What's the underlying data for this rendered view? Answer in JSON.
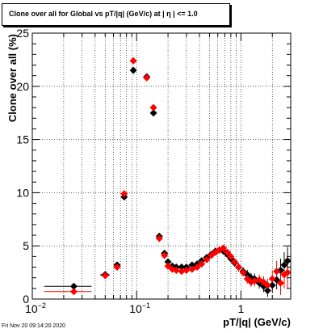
{
  "header": {
    "title": "Clone  over all for Global vs pT/|q| (GeV/c) at |  η | <= 1.0"
  },
  "footer": {
    "timestamp": "Fri Nov 20 09:14:20 2020"
  },
  "colors": {
    "series_black": "#000000",
    "series_red": "#ff0000",
    "frame": "#000000",
    "grid": "#000000",
    "background": "#ffffff"
  },
  "chart_data": {
    "type": "scatter",
    "xlabel": "pT/|q| (GeV/c)",
    "ylabel": "Clone  over all (%)",
    "x_scale": "log",
    "xlim": [
      0.01,
      3.0
    ],
    "ylim": [
      0,
      25
    ],
    "grid": true,
    "x_ticks": [
      {
        "value": 0.01,
        "base": "10",
        "exp": "−2"
      },
      {
        "value": 0.1,
        "base": "10",
        "exp": "−1"
      },
      {
        "value": 1,
        "base": "1",
        "exp": ""
      }
    ],
    "y_ticks": [
      0,
      5,
      10,
      15,
      20,
      25
    ],
    "series": [
      {
        "color": "#000000",
        "points": [
          {
            "x": 0.025,
            "y": 1.2,
            "xerr": 0.012,
            "yerr": 0.3
          },
          {
            "x": 0.05,
            "y": 2.3,
            "xerr": 0.005,
            "yerr": 0.25
          },
          {
            "x": 0.065,
            "y": 3.2,
            "xerr": 0.004,
            "yerr": 0.25
          },
          {
            "x": 0.076,
            "y": 9.6,
            "xerr": 0.003,
            "yerr": 0.3
          },
          {
            "x": 0.093,
            "y": 21.5,
            "xerr": 0.004,
            "yerr": 0.3
          },
          {
            "x": 0.125,
            "y": 20.9,
            "xerr": 0.005,
            "yerr": 0.3
          },
          {
            "x": 0.145,
            "y": 17.5,
            "xerr": 0.005,
            "yerr": 0.3
          },
          {
            "x": 0.165,
            "y": 5.9,
            "xerr": 0.005,
            "yerr": 0.3
          },
          {
            "x": 0.185,
            "y": 4.3,
            "xerr": 0.005,
            "yerr": 0.3
          },
          {
            "x": 0.2,
            "y": 3.5,
            "xerr": 0.005,
            "yerr": 0.25
          },
          {
            "x": 0.22,
            "y": 3.1,
            "xerr": 0.005,
            "yerr": 0.25
          },
          {
            "x": 0.24,
            "y": 3.0,
            "xerr": 0.005,
            "yerr": 0.25
          },
          {
            "x": 0.27,
            "y": 3.0,
            "xerr": 0.006,
            "yerr": 0.25
          },
          {
            "x": 0.3,
            "y": 3.0,
            "xerr": 0.006,
            "yerr": 0.25
          },
          {
            "x": 0.34,
            "y": 3.2,
            "xerr": 0.007,
            "yerr": 0.25
          },
          {
            "x": 0.38,
            "y": 3.3,
            "xerr": 0.008,
            "yerr": 0.25
          },
          {
            "x": 0.42,
            "y": 3.6,
            "xerr": 0.008,
            "yerr": 0.25
          },
          {
            "x": 0.47,
            "y": 3.9,
            "xerr": 0.009,
            "yerr": 0.25
          },
          {
            "x": 0.52,
            "y": 4.2,
            "xerr": 0.01,
            "yerr": 0.25
          },
          {
            "x": 0.57,
            "y": 4.5,
            "xerr": 0.011,
            "yerr": 0.3
          },
          {
            "x": 0.62,
            "y": 4.6,
            "xerr": 0.012,
            "yerr": 0.3
          },
          {
            "x": 0.68,
            "y": 4.5,
            "xerr": 0.013,
            "yerr": 0.3
          },
          {
            "x": 0.74,
            "y": 4.2,
            "xerr": 0.014,
            "yerr": 0.3
          },
          {
            "x": 0.8,
            "y": 3.8,
            "xerr": 0.015,
            "yerr": 0.35
          },
          {
            "x": 0.87,
            "y": 3.4,
            "xerr": 0.017,
            "yerr": 0.35
          },
          {
            "x": 0.95,
            "y": 3.0,
            "xerr": 0.018,
            "yerr": 0.4
          },
          {
            "x": 1.05,
            "y": 2.6,
            "xerr": 0.02,
            "yerr": 0.4
          },
          {
            "x": 1.15,
            "y": 2.3,
            "xerr": 0.022,
            "yerr": 0.45
          },
          {
            "x": 1.25,
            "y": 2.0,
            "xerr": 0.024,
            "yerr": 0.45
          },
          {
            "x": 1.35,
            "y": 1.9,
            "xerr": 0.026,
            "yerr": 0.5
          },
          {
            "x": 1.5,
            "y": 1.5,
            "xerr": 0.03,
            "yerr": 0.5
          },
          {
            "x": 1.65,
            "y": 1.2,
            "xerr": 0.03,
            "yerr": 0.55
          },
          {
            "x": 1.8,
            "y": 0.8,
            "xerr": 0.035,
            "yerr": 0.6
          },
          {
            "x": 2.0,
            "y": 1.3,
            "xerr": 0.04,
            "yerr": 0.7
          },
          {
            "x": 2.2,
            "y": 1.8,
            "xerr": 0.045,
            "yerr": 0.9
          },
          {
            "x": 2.4,
            "y": 2.7,
            "xerr": 0.05,
            "yerr": 1.1
          },
          {
            "x": 2.6,
            "y": 3.2,
            "xerr": 0.05,
            "yerr": 1.2
          },
          {
            "x": 2.8,
            "y": 3.6,
            "xerr": 0.05,
            "yerr": 1.3
          }
        ]
      },
      {
        "color": "#ff0000",
        "points": [
          {
            "x": 0.025,
            "y": 0.7,
            "xerr": 0.012,
            "yerr": 0.25
          },
          {
            "x": 0.05,
            "y": 2.2,
            "xerr": 0.005,
            "yerr": 0.25
          },
          {
            "x": 0.065,
            "y": 3.0,
            "xerr": 0.004,
            "yerr": 0.25
          },
          {
            "x": 0.076,
            "y": 9.9,
            "xerr": 0.003,
            "yerr": 0.3
          },
          {
            "x": 0.093,
            "y": 22.4,
            "xerr": 0.004,
            "yerr": 0.3
          },
          {
            "x": 0.125,
            "y": 20.8,
            "xerr": 0.005,
            "yerr": 0.3
          },
          {
            "x": 0.145,
            "y": 18.0,
            "xerr": 0.005,
            "yerr": 0.3
          },
          {
            "x": 0.165,
            "y": 5.7,
            "xerr": 0.005,
            "yerr": 0.3
          },
          {
            "x": 0.185,
            "y": 4.1,
            "xerr": 0.005,
            "yerr": 0.3
          },
          {
            "x": 0.2,
            "y": 3.1,
            "xerr": 0.005,
            "yerr": 0.25
          },
          {
            "x": 0.22,
            "y": 2.8,
            "xerr": 0.005,
            "yerr": 0.25
          },
          {
            "x": 0.24,
            "y": 2.7,
            "xerr": 0.005,
            "yerr": 0.25
          },
          {
            "x": 0.27,
            "y": 2.6,
            "xerr": 0.006,
            "yerr": 0.25
          },
          {
            "x": 0.3,
            "y": 2.7,
            "xerr": 0.006,
            "yerr": 0.25
          },
          {
            "x": 0.34,
            "y": 2.8,
            "xerr": 0.007,
            "yerr": 0.25
          },
          {
            "x": 0.38,
            "y": 3.0,
            "xerr": 0.008,
            "yerr": 0.25
          },
          {
            "x": 0.42,
            "y": 3.3,
            "xerr": 0.008,
            "yerr": 0.25
          },
          {
            "x": 0.47,
            "y": 3.7,
            "xerr": 0.009,
            "yerr": 0.25
          },
          {
            "x": 0.52,
            "y": 4.1,
            "xerr": 0.01,
            "yerr": 0.25
          },
          {
            "x": 0.57,
            "y": 4.4,
            "xerr": 0.011,
            "yerr": 0.3
          },
          {
            "x": 0.62,
            "y": 4.6,
            "xerr": 0.012,
            "yerr": 0.3
          },
          {
            "x": 0.68,
            "y": 4.8,
            "xerr": 0.013,
            "yerr": 0.3
          },
          {
            "x": 0.74,
            "y": 4.4,
            "xerr": 0.014,
            "yerr": 0.3
          },
          {
            "x": 0.8,
            "y": 4.0,
            "xerr": 0.015,
            "yerr": 0.35
          },
          {
            "x": 0.87,
            "y": 3.5,
            "xerr": 0.017,
            "yerr": 0.35
          },
          {
            "x": 0.95,
            "y": 3.0,
            "xerr": 0.018,
            "yerr": 0.4
          },
          {
            "x": 1.05,
            "y": 2.5,
            "xerr": 0.02,
            "yerr": 0.4
          },
          {
            "x": 1.15,
            "y": 1.9,
            "xerr": 0.022,
            "yerr": 0.45
          },
          {
            "x": 1.25,
            "y": 1.6,
            "xerr": 0.024,
            "yerr": 0.45
          },
          {
            "x": 1.35,
            "y": 1.7,
            "xerr": 0.026,
            "yerr": 0.5
          },
          {
            "x": 1.5,
            "y": 1.8,
            "xerr": 0.03,
            "yerr": 0.5
          },
          {
            "x": 1.65,
            "y": 1.6,
            "xerr": 0.03,
            "yerr": 0.55
          },
          {
            "x": 1.8,
            "y": 1.3,
            "xerr": 0.035,
            "yerr": 0.6
          },
          {
            "x": 2.0,
            "y": 1.9,
            "xerr": 0.04,
            "yerr": 0.8
          },
          {
            "x": 2.2,
            "y": 2.6,
            "xerr": 0.045,
            "yerr": 1.0
          },
          {
            "x": 2.4,
            "y": 1.5,
            "xerr": 0.05,
            "yerr": 1.1
          },
          {
            "x": 2.6,
            "y": 2.3,
            "xerr": 0.05,
            "yerr": 1.3
          },
          {
            "x": 2.8,
            "y": 2.5,
            "xerr": 0.05,
            "yerr": 1.5
          }
        ]
      }
    ]
  }
}
